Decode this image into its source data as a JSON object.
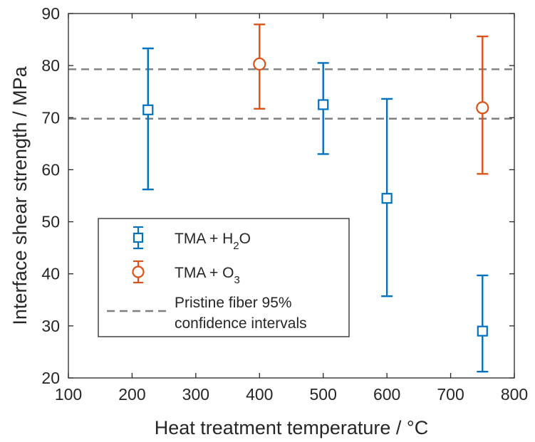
{
  "chart_data": {
    "type": "scatter",
    "xlabel": "Heat treatment temperature / °C",
    "ylabel": "Interface shear strength / MPa",
    "xlim": [
      100,
      800
    ],
    "ylim": [
      20,
      90
    ],
    "xticks": [
      100,
      200,
      300,
      400,
      500,
      600,
      700,
      800
    ],
    "yticks": [
      20,
      30,
      40,
      50,
      60,
      70,
      80,
      90
    ],
    "grid": false,
    "legend_position": "lower-left",
    "series": [
      {
        "name": "TMA + H2O",
        "name_main": "TMA + H",
        "name_sub": "2",
        "name_tail": "O",
        "marker": "square",
        "color": "#0072BD",
        "points": [
          {
            "x": 225,
            "y": 71.5,
            "lower": 56.2,
            "upper": 83.3
          },
          {
            "x": 500,
            "y": 72.5,
            "lower": 63.0,
            "upper": 80.5
          },
          {
            "x": 600,
            "y": 54.5,
            "lower": 35.7,
            "upper": 73.6
          },
          {
            "x": 750,
            "y": 29.0,
            "lower": 21.2,
            "upper": 39.7
          }
        ]
      },
      {
        "name": "TMA + O3",
        "name_main": "TMA + O",
        "name_sub": "3",
        "name_tail": "",
        "marker": "circle",
        "color": "#D95319",
        "points": [
          {
            "x": 400,
            "y": 80.3,
            "lower": 71.7,
            "upper": 87.9
          },
          {
            "x": 750,
            "y": 71.9,
            "lower": 59.2,
            "upper": 85.6
          }
        ]
      }
    ],
    "reference_lines": {
      "name_line1": "Pristine fiber 95%",
      "name_line2": "confidence intervals",
      "color": "#7F7F7F",
      "values": [
        79.3,
        69.8
      ]
    }
  }
}
